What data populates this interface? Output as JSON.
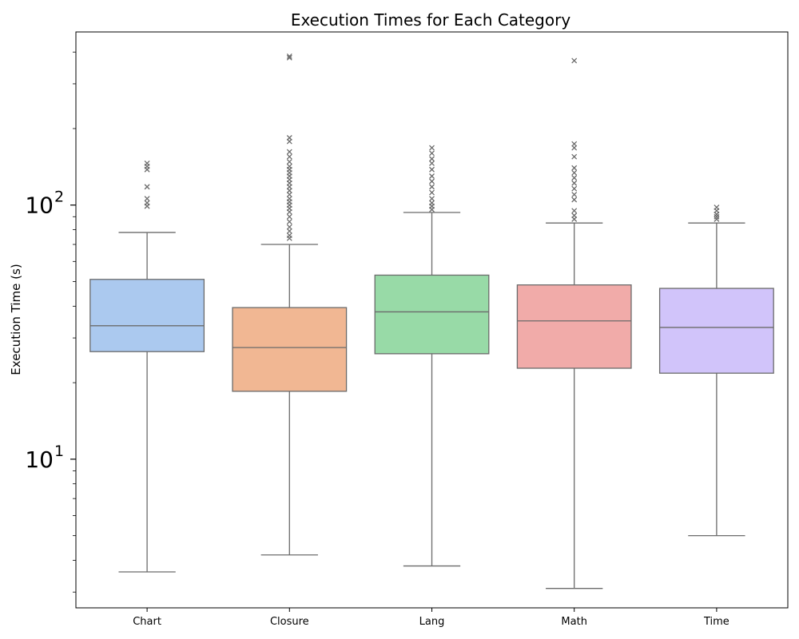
{
  "chart_data": {
    "type": "box",
    "title": "Execution Times for Each Category",
    "xlabel": "",
    "ylabel": "Execution Time (s)",
    "yscale": "log",
    "ylim": [
      2.6,
      480
    ],
    "yticks": [
      {
        "value": 10,
        "base": "10",
        "exp": "1"
      },
      {
        "value": 100,
        "base": "10",
        "exp": "2"
      }
    ],
    "colors": {
      "Chart": "#abc9ef",
      "Closure": "#f1b793",
      "Lang": "#98daa7",
      "Math": "#f1aba9",
      "Time": "#d1c4fa",
      "line": "#6b6b6b"
    },
    "categories": [
      "Chart",
      "Closure",
      "Lang",
      "Math",
      "Time"
    ],
    "boxes": [
      {
        "name": "Chart",
        "whislo": 3.6,
        "q1": 26.5,
        "median": 33.5,
        "q3": 51.0,
        "whishi": 78.0,
        "fliers": [
          99,
          102,
          106,
          118,
          138,
          142,
          146
        ]
      },
      {
        "name": "Closure",
        "whislo": 4.2,
        "q1": 18.5,
        "median": 27.5,
        "q3": 39.5,
        "whishi": 70.0,
        "fliers": [
          74,
          76,
          79,
          82,
          86,
          90,
          94,
          97,
          100,
          103,
          106,
          110,
          114,
          118,
          122,
          126,
          130,
          134,
          138,
          142,
          148,
          155,
          162,
          178,
          184,
          380,
          385
        ]
      },
      {
        "name": "Lang",
        "whislo": 3.8,
        "q1": 26.0,
        "median": 38.0,
        "q3": 53.0,
        "whishi": 93.5,
        "fliers": [
          96,
          99,
          102,
          106,
          112,
          118,
          124,
          130,
          138,
          146,
          152,
          160,
          168
        ]
      },
      {
        "name": "Math",
        "whislo": 3.1,
        "q1": 22.8,
        "median": 35.0,
        "q3": 48.5,
        "whishi": 85.0,
        "fliers": [
          88,
          91,
          95,
          105,
          110,
          116,
          122,
          128,
          134,
          140,
          155,
          168,
          174,
          370
        ]
      },
      {
        "name": "Time",
        "whislo": 5.0,
        "q1": 21.8,
        "median": 33.0,
        "q3": 47.0,
        "whishi": 85.0,
        "fliers": [
          88,
          90,
          92,
          95,
          98
        ]
      }
    ]
  }
}
